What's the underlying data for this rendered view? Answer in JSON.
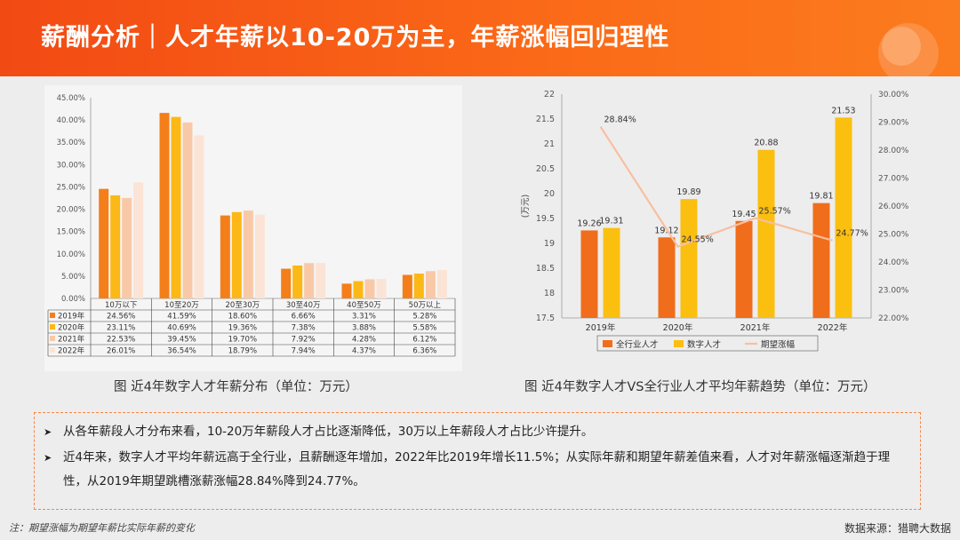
{
  "header": {
    "title": "薪酬分析｜人才年薪以10-20万为主，年薪涨幅回归理性"
  },
  "colors": {
    "header": "#f75a16",
    "y2019": "#f37e1a",
    "y2020": "#fcb816",
    "y2021": "#f9c9a7",
    "y2022": "#fbe4d5",
    "all_industry": "#f06d1b",
    "digital": "#fbbf10",
    "expected": "#f8bfa0"
  },
  "chart_data": [
    {
      "type": "bar",
      "categories": [
        "10万以下",
        "10至20万",
        "20至30万",
        "30至40万",
        "40至50万",
        "50万以上"
      ],
      "series": [
        {
          "name": "2019年",
          "values": [
            24.56,
            41.59,
            18.6,
            6.66,
            3.31,
            5.28
          ],
          "labels": [
            "24.56%",
            "41.59%",
            "18.60%",
            "6.66%",
            "3.31%",
            "5.28%"
          ]
        },
        {
          "name": "2020年",
          "values": [
            23.11,
            40.69,
            19.36,
            7.38,
            3.88,
            5.58
          ],
          "labels": [
            "23.11%",
            "40.69%",
            "19.36%",
            "7.38%",
            "3.88%",
            "5.58%"
          ]
        },
        {
          "name": "2021年",
          "values": [
            22.53,
            39.45,
            19.7,
            7.92,
            4.28,
            6.12
          ],
          "labels": [
            "22.53%",
            "39.45%",
            "19.70%",
            "7.92%",
            "4.28%",
            "6.12%"
          ]
        },
        {
          "name": "2022年",
          "values": [
            26.01,
            36.54,
            18.79,
            7.94,
            4.37,
            6.36
          ],
          "labels": [
            "26.01%",
            "36.54%",
            "18.79%",
            "7.94%",
            "4.37%",
            "6.36%"
          ]
        }
      ],
      "yticks": [
        "0.00%",
        "5.00%",
        "10.00%",
        "15.00%",
        "20.00%",
        "25.00%",
        "30.00%",
        "35.00%",
        "40.00%",
        "45.00%"
      ],
      "ylim": [
        0,
        45
      ],
      "legend": "table-below",
      "caption": "图 近4年数字人才年薪分布（单位：万元）"
    },
    {
      "type": "bar+line",
      "categories": [
        "2019年",
        "2020年",
        "2021年",
        "2022年"
      ],
      "series": [
        {
          "name": "全行业人才",
          "values": [
            19.26,
            19.12,
            19.45,
            19.81
          ],
          "labels": [
            "19.26",
            "19.12",
            "19.45",
            "19.81"
          ]
        },
        {
          "name": "数字人才",
          "values": [
            19.31,
            19.89,
            20.88,
            21.53
          ],
          "labels": [
            "19.31",
            "19.89",
            "20.88",
            "21.53"
          ]
        },
        {
          "name": "期望涨幅",
          "axis": "right",
          "values": [
            28.84,
            24.55,
            25.57,
            24.77
          ],
          "labels": [
            "28.84%",
            "24.55%",
            "25.57%",
            "24.77%"
          ]
        }
      ],
      "ylabel": "(万元)",
      "yticks": [
        "17.5",
        "18",
        "18.5",
        "19",
        "19.5",
        "20",
        "20.5",
        "21",
        "21.5",
        "22"
      ],
      "ylim": [
        17.5,
        22
      ],
      "y2ticks": [
        "22.00%",
        "23.00%",
        "24.00%",
        "25.00%",
        "26.00%",
        "27.00%",
        "28.00%",
        "29.00%",
        "30.00%"
      ],
      "y2lim": [
        22,
        30
      ],
      "legend": "bottom",
      "caption": "图 近4年数字人才VS全行业人才平均年薪趋势（单位：万元）"
    }
  ],
  "summary": {
    "bullets": [
      "从各年薪段人才分布来看，10-20万年薪段人才占比逐渐降低，30万以上年薪段人才占比少许提升。",
      "近4年来，数字人才平均年薪远高于全行业，且薪酬逐年增加，2022年比2019年增长11.5%；从实际年薪和期望年薪差值来看，人才对年薪涨幅逐渐趋于理性，从2019年期望跳槽涨薪涨幅28.84%降到24.77%。"
    ],
    "arrow": "➤"
  },
  "footnote": "注：期望涨幅为期望年薪比实际年薪的变化",
  "source": "数据来源：猎聘大数据"
}
